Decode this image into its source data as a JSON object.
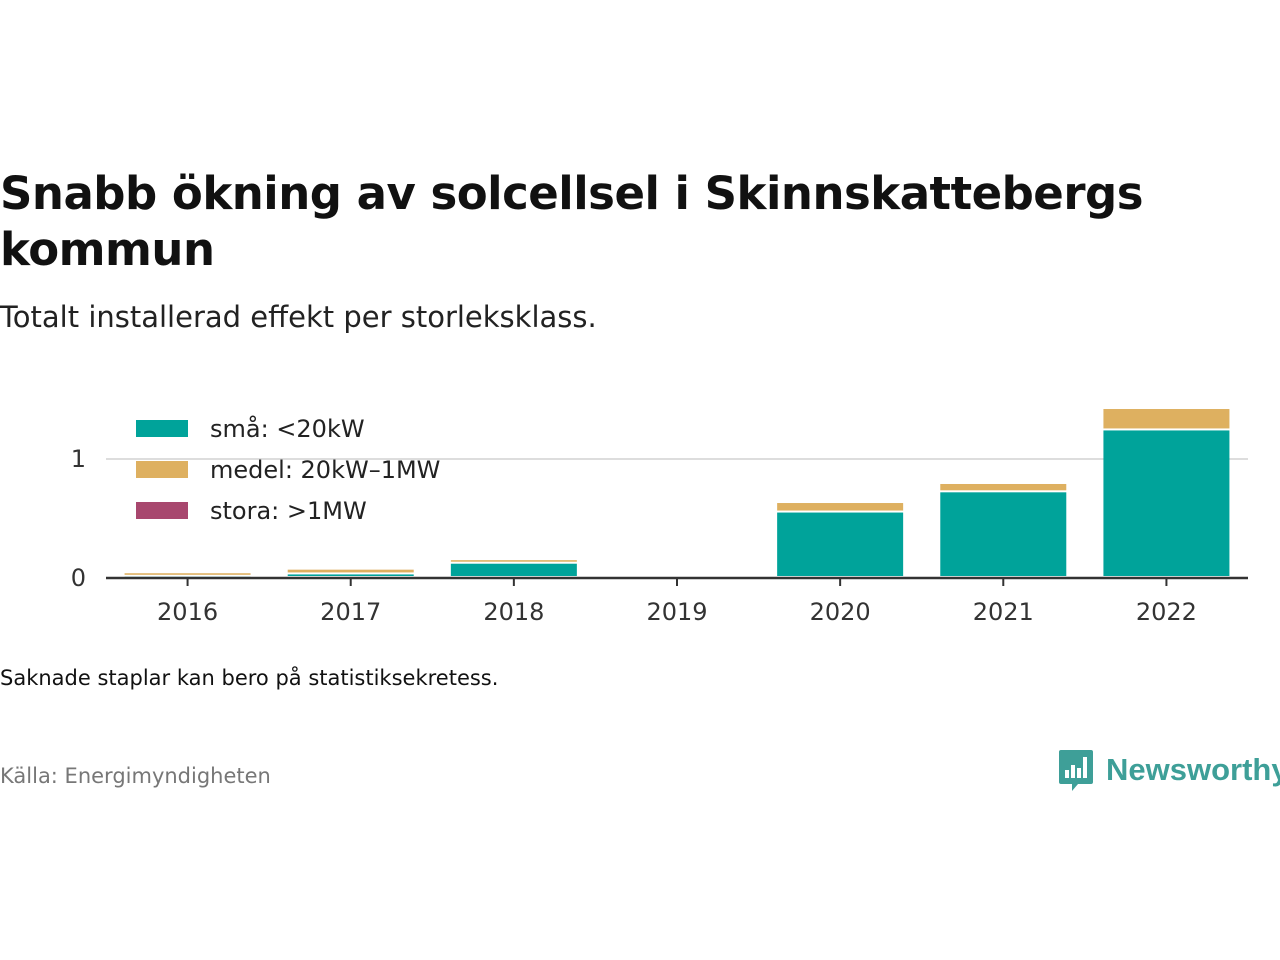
{
  "title": "Snabb ökning av solcellsel i Skinnskattebergs kommun",
  "subtitle": "Totalt installerad effekt per storleksklass.",
  "note": "Saknade staplar kan bero på statistiksekretess.",
  "source": "Källa: Energimyndigheten",
  "brand": {
    "name": "Newsworthy",
    "icon": "newsworthy-logo-icon",
    "color": "#3e9f98"
  },
  "chart_data": {
    "type": "bar",
    "stacked": true,
    "categories": [
      "2016",
      "2017",
      "2018",
      "2019",
      "2020",
      "2021",
      "2022"
    ],
    "series": [
      {
        "name": "små: <20kW",
        "color": "#00a39a",
        "values": [
          0.01,
          0.03,
          0.12,
          null,
          0.55,
          0.72,
          1.24
        ]
      },
      {
        "name": "medel: 20kW–1MW",
        "color": "#deb060",
        "values": [
          0.03,
          0.04,
          0.03,
          null,
          0.08,
          0.07,
          0.18
        ]
      },
      {
        "name": "stora: >1MW",
        "color": "#a8476e",
        "values": [
          0,
          0,
          0,
          null,
          0,
          0,
          0
        ]
      }
    ],
    "yticks": [
      "0",
      "1"
    ],
    "ylim": [
      0,
      1.42
    ],
    "grid": true,
    "legend_position": "top-left"
  }
}
